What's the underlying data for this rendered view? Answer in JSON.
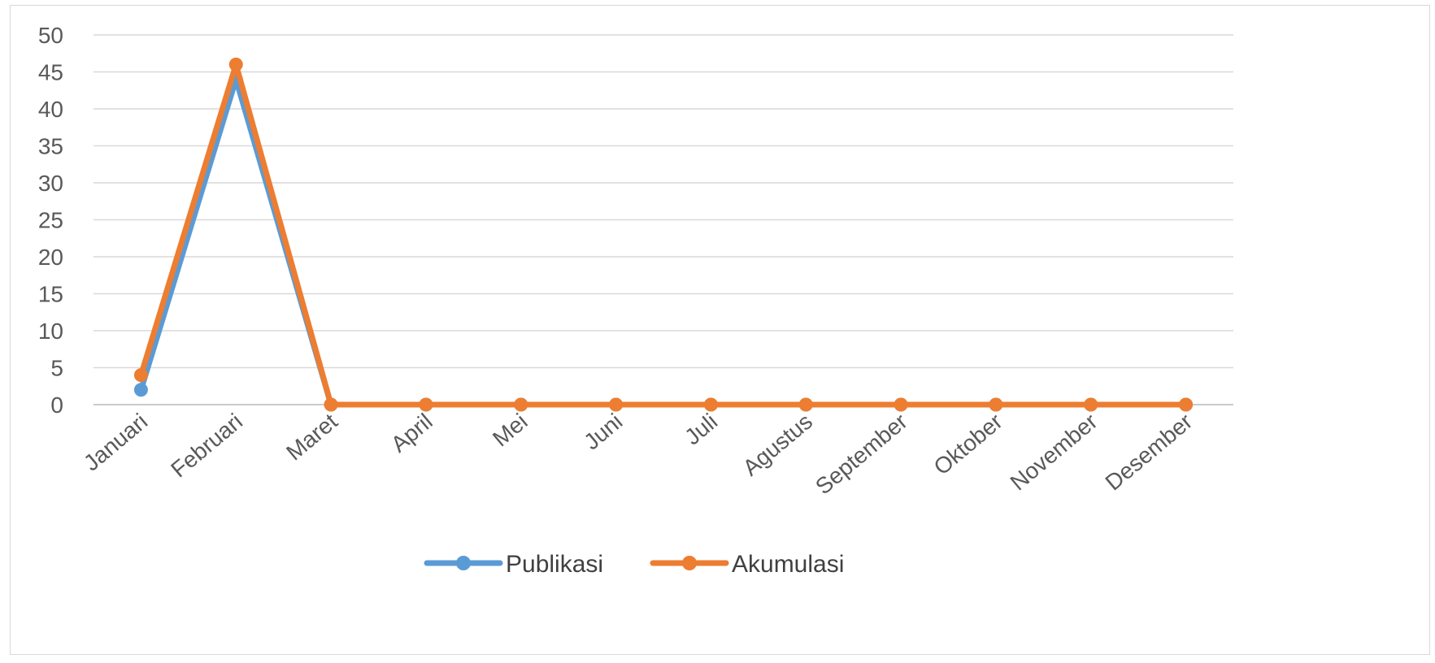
{
  "chart_data": {
    "type": "line",
    "title": "",
    "xlabel": "",
    "ylabel": "",
    "categories": [
      "Januari",
      "Februari",
      "Maret",
      "April",
      "Mei",
      "Juni",
      "Juli",
      "Agustus",
      "September",
      "Oktober",
      "November",
      "Desember"
    ],
    "ylim": [
      0,
      50
    ],
    "yticks": [
      0,
      5,
      10,
      15,
      20,
      25,
      30,
      35,
      40,
      45,
      50
    ],
    "grid": true,
    "legend_position": "bottom",
    "series": [
      {
        "name": "Publikasi",
        "color": "#5b9bd5",
        "values": [
          2,
          44,
          0,
          0,
          0,
          0,
          0,
          0,
          0,
          0,
          0,
          0
        ]
      },
      {
        "name": "Akumulasi",
        "color": "#ed7d31",
        "values": [
          4,
          46,
          0,
          0,
          0,
          0,
          0,
          0,
          0,
          0,
          0,
          0
        ]
      }
    ]
  }
}
